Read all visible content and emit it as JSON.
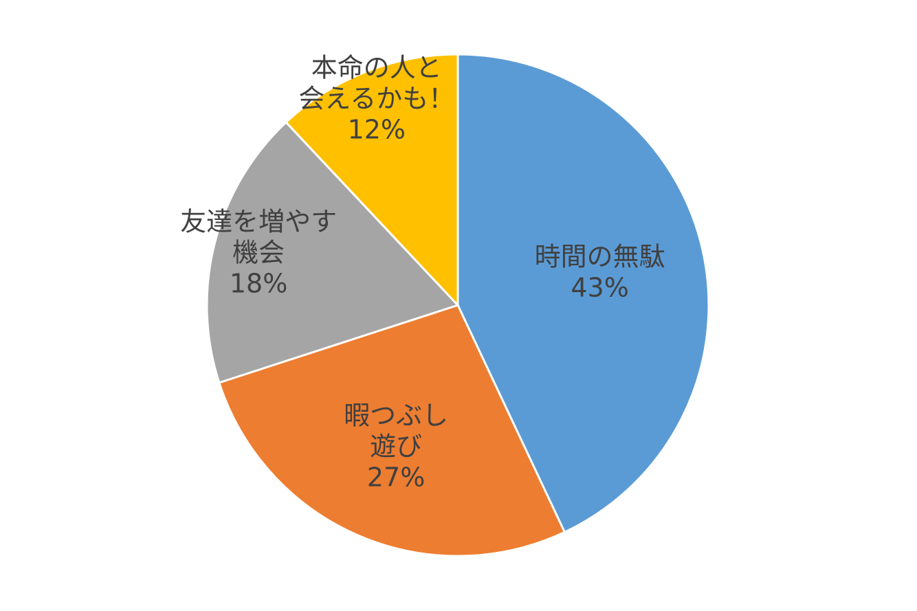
{
  "chart_data": {
    "type": "pie",
    "title": "",
    "start_angle_deg": 0,
    "direction": "clockwise",
    "slices": [
      {
        "label_lines": [
          "時間の無駄"
        ],
        "value": 43,
        "value_label": "43%",
        "color": "#5B9BD5"
      },
      {
        "label_lines": [
          "暇つぶし",
          "遊び"
        ],
        "value": 27,
        "value_label": "27%",
        "color": "#ED7D31"
      },
      {
        "label_lines": [
          "友達を増やす",
          "機会"
        ],
        "value": 18,
        "value_label": "18%",
        "color": "#A5A5A5"
      },
      {
        "label_lines": [
          "本命の人と",
          "会えるかも！"
        ],
        "value": 12,
        "value_label": "12%",
        "color": "#FFC000"
      }
    ],
    "legend": "none",
    "data_labels": "category and percentage"
  }
}
